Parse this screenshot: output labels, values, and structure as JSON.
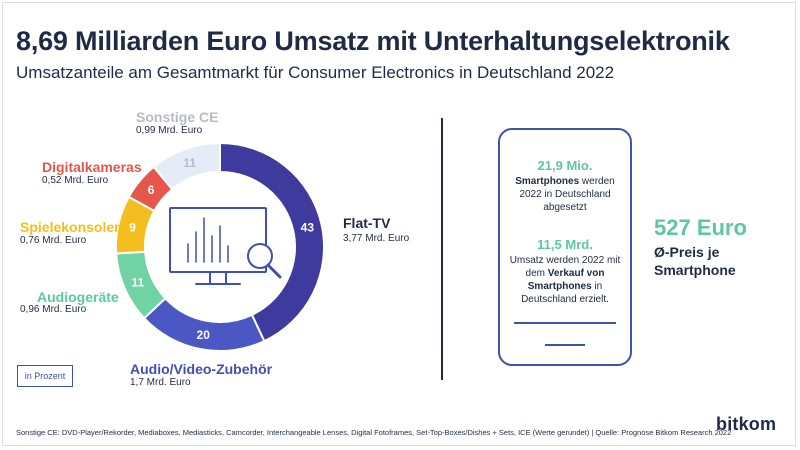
{
  "title": "8,69 Milliarden Euro Umsatz mit Unterhaltungselektronik",
  "subtitle": "Umsatzanteile am Gesamtmarkt für Consumer Electronics in Deutschland 2022",
  "unit_label": "in Prozent",
  "colors": {
    "dark": "#1f2a44",
    "blue": "#3f4fb2",
    "green": "#5bc8a0",
    "light_green": "#6fd3a4",
    "yellow": "#f5be1f",
    "red": "#e4574a",
    "grey_blue": "#e6ecf7",
    "grey_text": "#b7bdc8"
  },
  "chart_data": {
    "type": "pie",
    "variant": "donut",
    "unit": "Prozent",
    "slices": [
      {
        "name": "Flat-TV",
        "value": 43,
        "value_label": "3,77 Mrd. Euro",
        "color": "#3f3a9e"
      },
      {
        "name": "Audio/Video-Zubehör",
        "value": 20,
        "value_label": "1,7 Mrd. Euro",
        "color": "#4b57c2"
      },
      {
        "name": "Audiogeräte",
        "value": 11,
        "value_label": "0,96 Mrd. Euro",
        "color": "#6fd3a4"
      },
      {
        "name": "Spielekonsolen",
        "value": 9,
        "value_label": "0,76 Mrd. Euro",
        "color": "#f5be1f"
      },
      {
        "name": "Digitalkameras",
        "value": 6,
        "value_label": "0,52 Mrd. Euro",
        "color": "#e4574a"
      },
      {
        "name": "Sonstige CE",
        "value": 11,
        "value_label": "0,99 Mrd. Euro",
        "color": "#e6ecf7"
      }
    ]
  },
  "smartphone": {
    "stat1_value": "21,9 Mio.",
    "stat1_bold": "Smartphones",
    "stat1_text": " werden 2022 in Deutschland abgesetzt",
    "stat2_value": "11,5 Mrd.",
    "stat2_text1": "Umsatz werden 2022 mit dem ",
    "stat2_bold1": "Verkauf von Smartphones",
    "stat2_text2": " in Deutschland erzielt.",
    "price": "527 Euro",
    "price_label": "Ø-Preis je Smartphone"
  },
  "footer": "Sonstige CE: DVD-Player/Rekorder, Mediaboxes, Mediasticks, Camcorder, Interchangeable Lenses, Digital Fotoframes, Set-Top-Boxes/Dishes + Sets, ICE (Werte gerundet) | Quelle: Prognose Bitkom Research 2022",
  "logo": "bitkom"
}
